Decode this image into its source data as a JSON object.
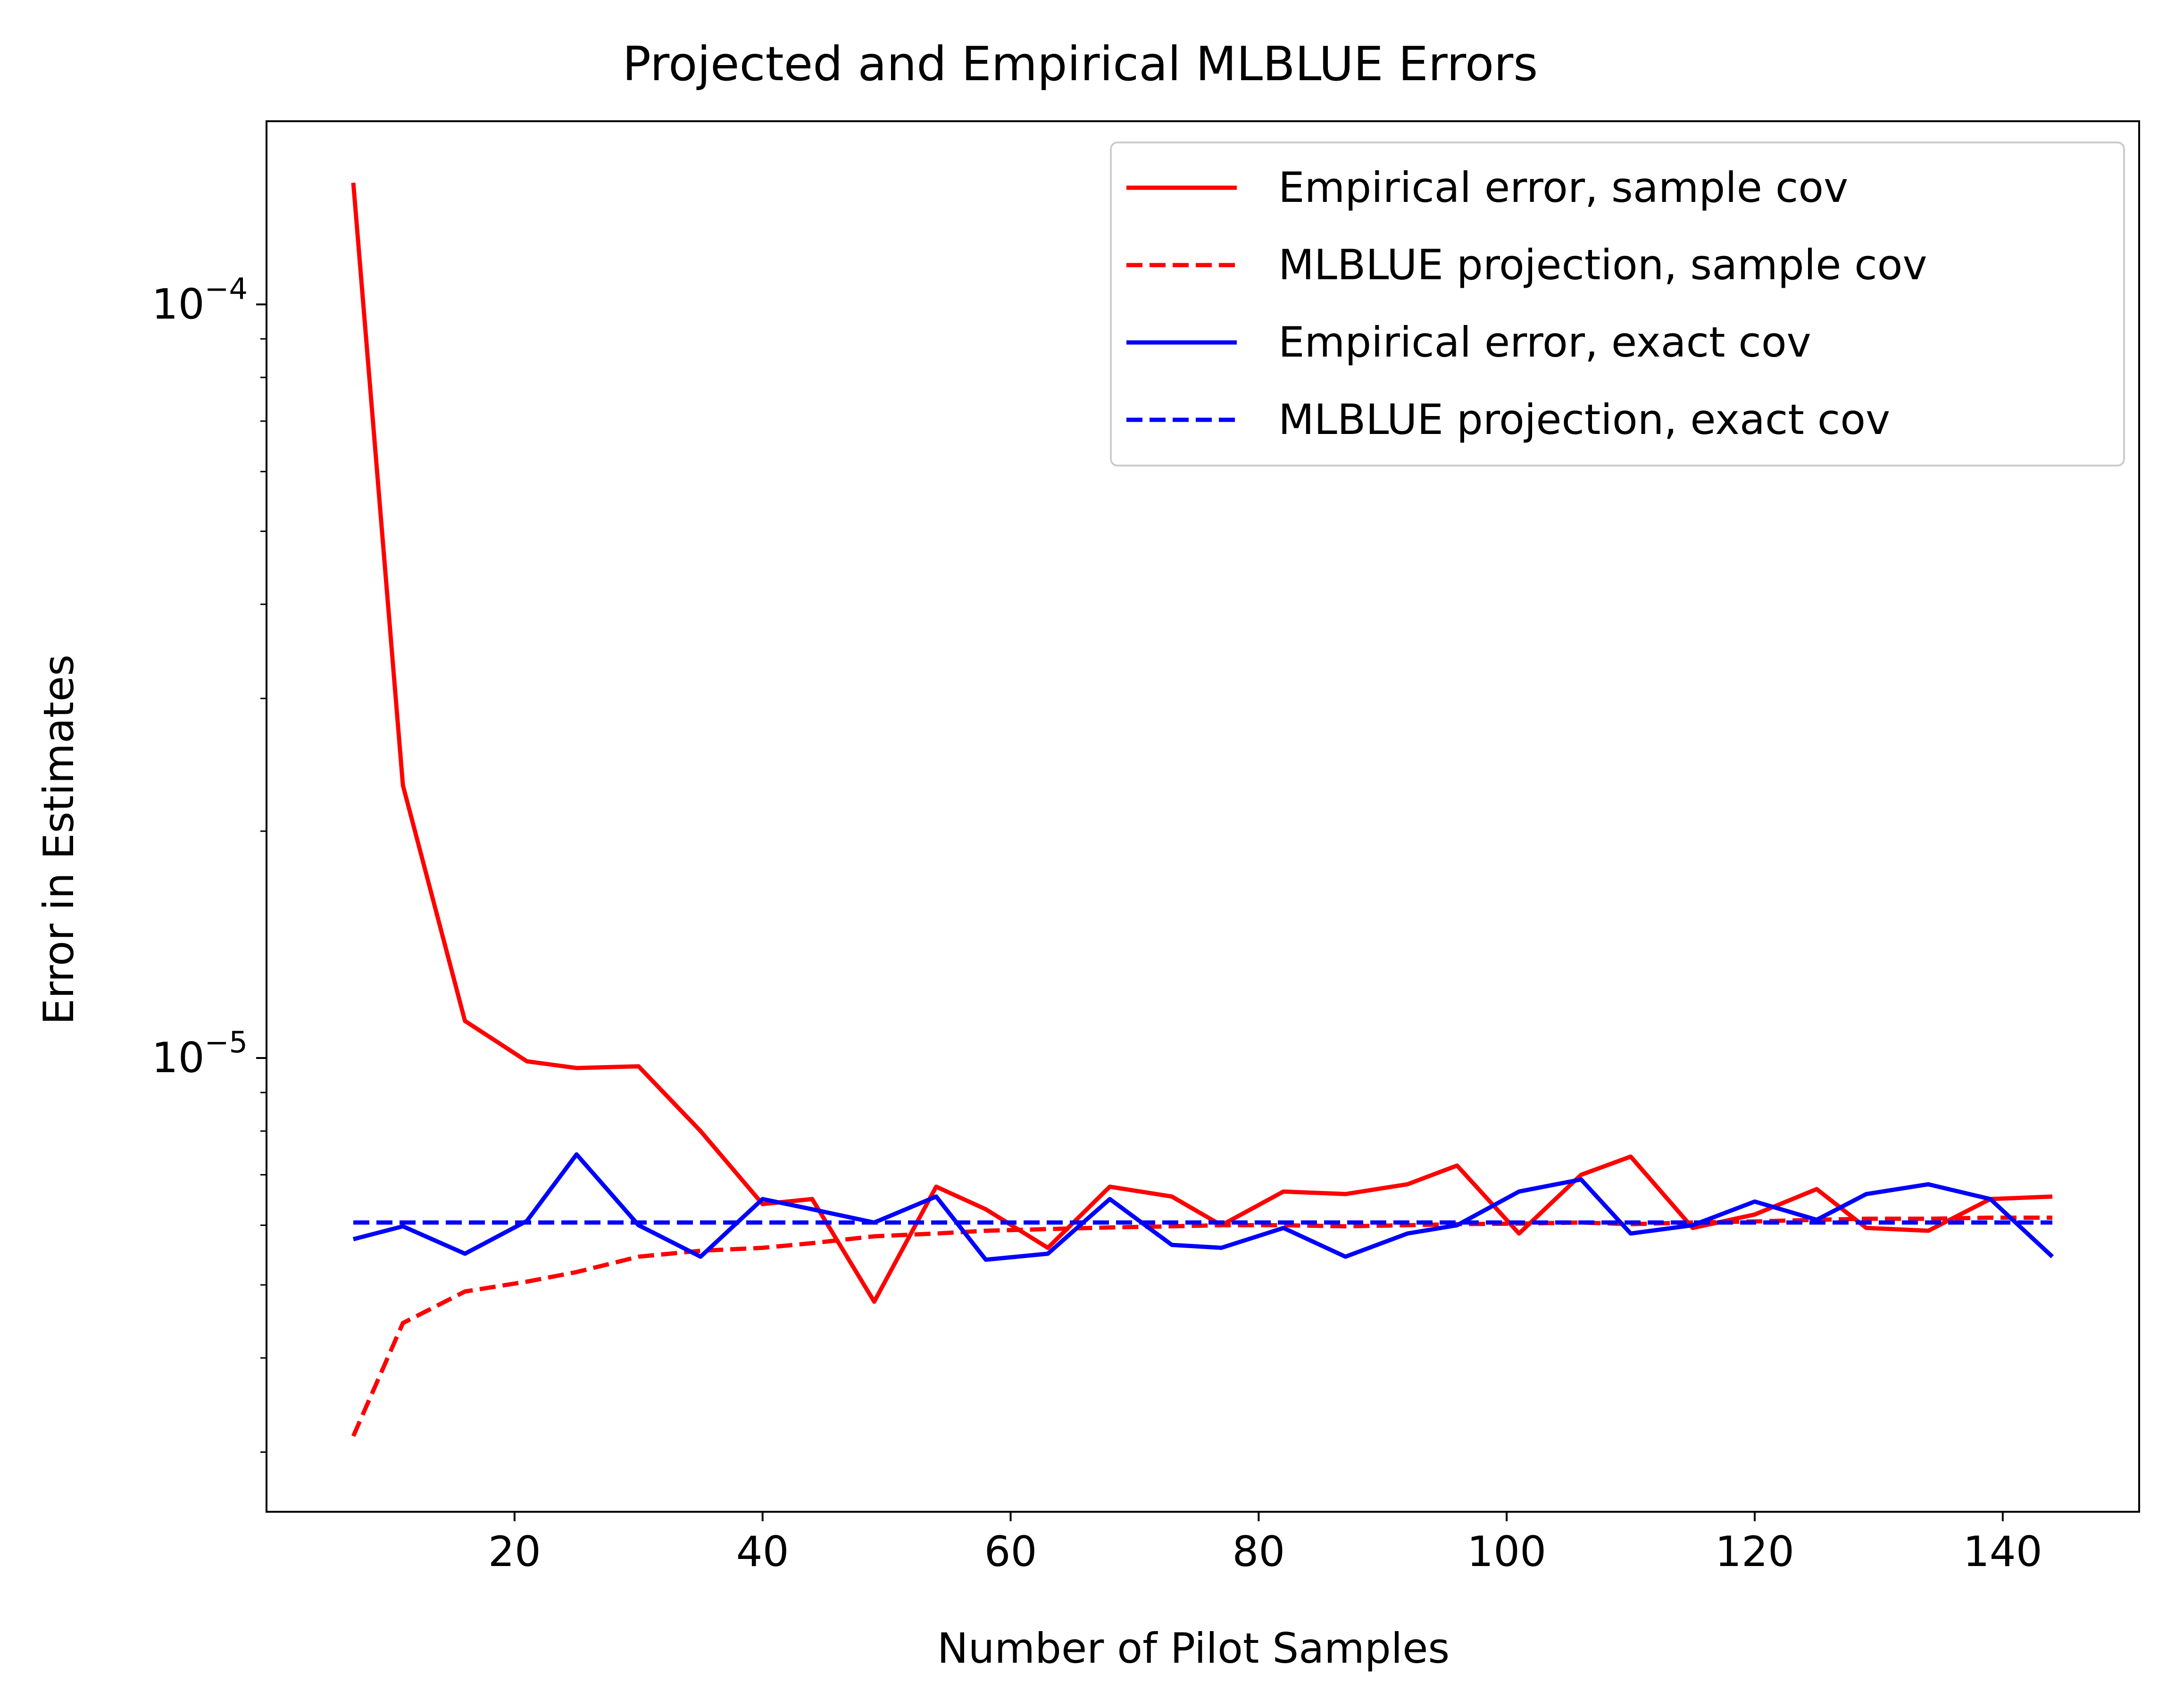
{
  "chart_data": {
    "type": "line",
    "title": "Projected and Empirical MLBLUE Errors",
    "xlabel": "Number of Pilot Samples",
    "ylabel": "Error in Estimates",
    "x_scale": "linear",
    "y_scale": "log",
    "xlim": [
      0,
      151
    ],
    "ylim": [
      2.5e-06,
      0.000175
    ],
    "x_ticks": [
      20,
      40,
      60,
      80,
      100,
      120,
      140
    ],
    "x_tick_labels": [
      "20",
      "40",
      "60",
      "80",
      "100",
      "120",
      "140"
    ],
    "y_major_ticks": [
      1e-05,
      0.0001
    ],
    "y_major_tick_labels": [
      {
        "base": "10",
        "exp": "−5"
      },
      {
        "base": "10",
        "exp": "−4"
      }
    ],
    "y_minor_ticks": [
      3e-06,
      4e-06,
      5e-06,
      6e-06,
      7e-06,
      8e-06,
      9e-06,
      2e-05,
      3e-05,
      4e-05,
      5e-05,
      6e-05,
      7e-05,
      8e-05,
      9e-05
    ],
    "grid": false,
    "legend_position": "top-right",
    "x": [
      7,
      11,
      16,
      21,
      25,
      30,
      35,
      40,
      44,
      49,
      54,
      58,
      63,
      68,
      73,
      77,
      82,
      87,
      92,
      96,
      101,
      106,
      110,
      115,
      120,
      125,
      129,
      134,
      139,
      144
    ],
    "series": [
      {
        "name": "Empirical error, sample cov",
        "color": "#ff0000",
        "dashed": false,
        "values": [
          0.000145,
          2.3e-05,
          1.12e-05,
          9.9e-06,
          9.7e-06,
          9.75e-06,
          8e-06,
          6.4e-06,
          6.5e-06,
          4.75e-06,
          6.75e-06,
          6.3e-06,
          5.6e-06,
          6.75e-06,
          6.55e-06,
          6e-06,
          6.65e-06,
          6.6e-06,
          6.8e-06,
          7.2e-06,
          5.85e-06,
          7e-06,
          7.4e-06,
          5.95e-06,
          6.2e-06,
          6.7e-06,
          5.95e-06,
          5.9e-06,
          6.5e-06,
          6.55e-06
        ]
      },
      {
        "name": "MLBLUE projection, sample cov",
        "color": "#ff0000",
        "dashed": true,
        "values": [
          3.15e-06,
          4.45e-06,
          4.9e-06,
          5.05e-06,
          5.2e-06,
          5.45e-06,
          5.55e-06,
          5.6e-06,
          5.68e-06,
          5.8e-06,
          5.85e-06,
          5.9e-06,
          5.93e-06,
          5.96e-06,
          5.98e-06,
          6e-06,
          6e-06,
          5.98e-06,
          6e-06,
          6.02e-06,
          6.03e-06,
          6.05e-06,
          6.02e-06,
          6.05e-06,
          6.07e-06,
          6.1e-06,
          6.12e-06,
          6.12e-06,
          6.14e-06,
          6.14e-06
        ]
      },
      {
        "name": "Empirical error, exact cov",
        "color": "#0000ff",
        "dashed": false,
        "values": [
          5.75e-06,
          5.98e-06,
          5.5e-06,
          6.08e-06,
          7.45e-06,
          6e-06,
          5.45e-06,
          6.5e-06,
          6.3e-06,
          6.05e-06,
          6.55e-06,
          5.4e-06,
          5.5e-06,
          6.5e-06,
          5.65e-06,
          5.6e-06,
          5.95e-06,
          5.45e-06,
          5.85e-06,
          6e-06,
          6.65e-06,
          6.9e-06,
          5.85e-06,
          6e-06,
          6.45e-06,
          6.1e-06,
          6.6e-06,
          6.8e-06,
          6.5e-06,
          5.45e-06
        ]
      },
      {
        "name": "MLBLUE projection, exact cov",
        "color": "#0000ff",
        "dashed": true,
        "values": [
          6.05e-06,
          6.05e-06,
          6.05e-06,
          6.05e-06,
          6.05e-06,
          6.05e-06,
          6.05e-06,
          6.05e-06,
          6.05e-06,
          6.05e-06,
          6.05e-06,
          6.05e-06,
          6.05e-06,
          6.05e-06,
          6.05e-06,
          6.05e-06,
          6.05e-06,
          6.05e-06,
          6.05e-06,
          6.05e-06,
          6.05e-06,
          6.05e-06,
          6.05e-06,
          6.05e-06,
          6.05e-06,
          6.05e-06,
          6.05e-06,
          6.05e-06,
          6.05e-06,
          6.05e-06
        ]
      }
    ]
  }
}
